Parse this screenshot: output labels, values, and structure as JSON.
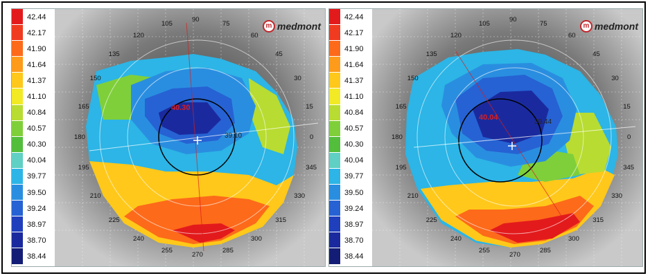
{
  "scale": {
    "values": [
      "42.44",
      "42.17",
      "41.90",
      "41.64",
      "41.37",
      "41.10",
      "40.84",
      "40.57",
      "40.30",
      "40.04",
      "39.77",
      "39.50",
      "39.24",
      "38.97",
      "38.70",
      "38.44"
    ],
    "colors": [
      "#e31a1c",
      "#f03b20",
      "#fd6a1a",
      "#ff9b1a",
      "#ffc81a",
      "#f2ea25",
      "#b8dc32",
      "#7fcf3a",
      "#52be3c",
      "#5fd0c3",
      "#2cb5e6",
      "#2a8ee0",
      "#2662d3",
      "#1f3fbd",
      "#1a2a9e",
      "#141d75"
    ]
  },
  "logo": {
    "mark": "m",
    "text": "medmont"
  },
  "axis_labels": [
    "105",
    "90",
    "75",
    "60",
    "45",
    "30",
    "15",
    "0",
    "345",
    "330",
    "315",
    "300",
    "285",
    "270",
    "255",
    "240",
    "225",
    "210",
    "195",
    "180",
    "165",
    "150",
    "135",
    "120"
  ],
  "maps": [
    {
      "id": "left",
      "center_value": "40.30",
      "right_value": "39.10"
    },
    {
      "id": "right",
      "center_value": "40.04",
      "right_value": "39.44"
    }
  ]
}
